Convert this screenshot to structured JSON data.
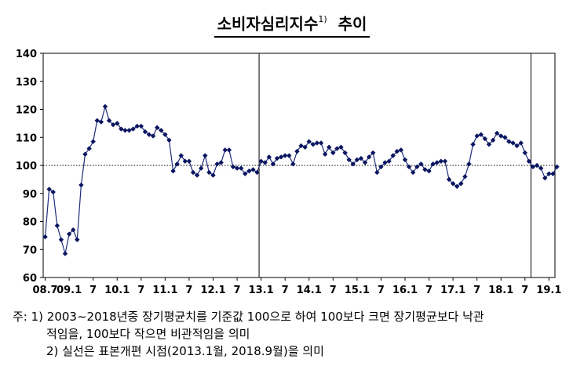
{
  "title": {
    "main": "소비자심리지수",
    "footnote_mark": "1)",
    "suffix": "추이"
  },
  "notes": {
    "line1": "주: 1) 2003~2018년중 장기평균치를 기준값 100으로 하여 100보다 크면 장기평균보다 낙관",
    "line2": "적임을, 100보다 작으면 비관적임을 의미",
    "line3": "2) 실선은 표본개편 시점(2013.1월, 2018.9월)을 의미"
  },
  "colors": {
    "series": "#1f2d7a",
    "marker": "#0b1560",
    "axis": "#000000",
    "reference_line": "#000000"
  },
  "chart_data": {
    "type": "line",
    "title": "소비자심리지수 추이",
    "xlabel": "",
    "ylabel": "",
    "ylim": [
      60,
      140
    ],
    "yticks": [
      60,
      70,
      80,
      90,
      100,
      110,
      120,
      130,
      140
    ],
    "x_start": "2008-07",
    "x_end": "2019-02",
    "xtick_labels": [
      {
        "month": "2008-07",
        "label": "08.7"
      },
      {
        "month": "2009-01",
        "label": "09.1"
      },
      {
        "month": "2009-07",
        "label": "7"
      },
      {
        "month": "2010-01",
        "label": "10.1"
      },
      {
        "month": "2010-07",
        "label": "7"
      },
      {
        "month": "2011-01",
        "label": "11.1"
      },
      {
        "month": "2011-07",
        "label": "7"
      },
      {
        "month": "2012-01",
        "label": "12.1"
      },
      {
        "month": "2012-07",
        "label": "7"
      },
      {
        "month": "2013-01",
        "label": "13.1"
      },
      {
        "month": "2013-07",
        "label": "7"
      },
      {
        "month": "2014-01",
        "label": "14.1"
      },
      {
        "month": "2014-07",
        "label": "7"
      },
      {
        "month": "2015-01",
        "label": "15.1"
      },
      {
        "month": "2015-07",
        "label": "7"
      },
      {
        "month": "2016-01",
        "label": "16.1"
      },
      {
        "month": "2016-07",
        "label": "7"
      },
      {
        "month": "2017-01",
        "label": "17.1"
      },
      {
        "month": "2017-07",
        "label": "7"
      },
      {
        "month": "2018-01",
        "label": "18.1"
      },
      {
        "month": "2018-07",
        "label": "7"
      },
      {
        "month": "2019-01",
        "label": "19.1"
      }
    ],
    "reference_line": 100,
    "vertical_lines": [
      "2013-01",
      "2018-09"
    ],
    "series": [
      {
        "values": [
          74.5,
          91.5,
          90.5,
          78.5,
          73.5,
          68.5,
          75.5,
          77.0,
          73.5,
          93.0,
          104.0,
          106.0,
          108.5,
          116.0,
          115.5,
          121.0,
          116.0,
          114.5,
          115.0,
          113.0,
          112.5,
          112.5,
          113.0,
          114.0,
          114.0,
          112.0,
          111.0,
          110.5,
          113.5,
          112.5,
          111.0,
          109.0,
          98.0,
          100.5,
          103.5,
          101.5,
          101.5,
          97.5,
          96.5,
          99.0,
          103.5,
          97.5,
          96.5,
          100.5,
          101.0,
          105.5,
          105.5,
          99.5,
          99.0,
          99.0,
          97.0,
          98.0,
          98.5,
          97.5,
          101.5,
          101.0,
          103.0,
          100.5,
          102.5,
          103.0,
          103.5,
          103.5,
          100.5,
          105.0,
          107.0,
          106.5,
          108.5,
          107.5,
          108.0,
          108.0,
          104.0,
          106.5,
          104.5,
          106.0,
          106.5,
          104.5,
          102.0,
          100.5,
          102.0,
          102.5,
          101.0,
          103.0,
          104.5,
          97.5,
          99.5,
          101.0,
          101.5,
          103.5,
          105.0,
          105.5,
          102.0,
          99.5,
          97.5,
          99.5,
          100.5,
          98.5,
          98.0,
          100.5,
          101.0,
          101.5,
          101.5,
          95.0,
          93.5,
          92.5,
          93.5,
          96.0,
          100.5,
          107.5,
          110.5,
          111.0,
          109.5,
          107.5,
          109.0,
          111.5,
          110.5,
          110.0,
          108.5,
          108.0,
          107.0,
          108.0,
          104.5,
          101.5,
          99.5,
          100.0,
          99.0,
          95.5,
          97.0,
          97.0,
          99.5
        ]
      }
    ]
  }
}
